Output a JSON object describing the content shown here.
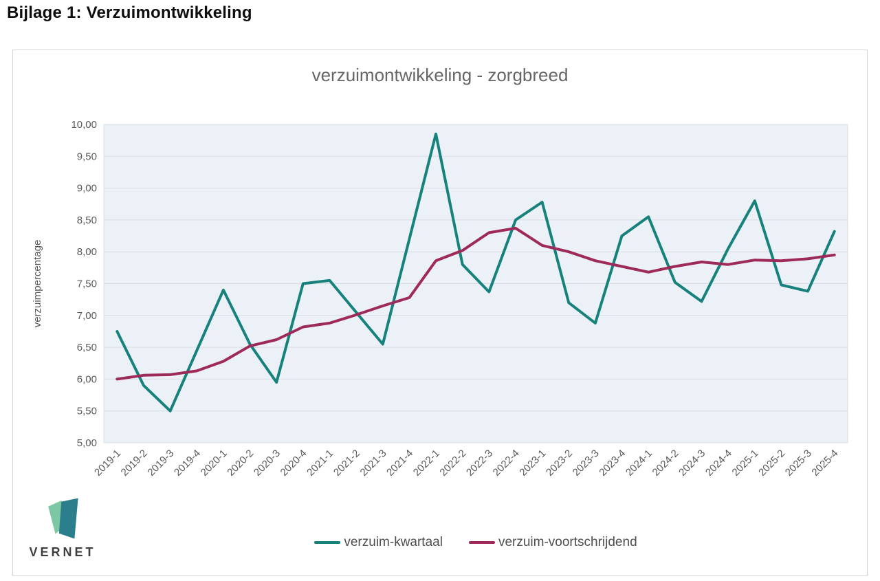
{
  "page": {
    "heading": "Bijlage 1: Verzuimontwikkeling"
  },
  "logo": {
    "text": "VERNET"
  },
  "chart_data": {
    "type": "line",
    "title": "verzuimontwikkeling - zorgbreed",
    "xlabel": "",
    "ylabel": "verzuimpercentage",
    "ylim": [
      5.0,
      10.0
    ],
    "ytick_step": 0.5,
    "ytick_labels": [
      "10,00",
      "9,50",
      "9,00",
      "8,50",
      "8,00",
      "7,50",
      "7,00",
      "6,50",
      "6,00",
      "5,50",
      "5,00"
    ],
    "grid": true,
    "legend_position": "bottom",
    "categories": [
      "2019-1",
      "2019-2",
      "2019-3",
      "2019-4",
      "2020-1",
      "2020-2",
      "2020-3",
      "2020-4",
      "2021-1",
      "2021-2",
      "2021-3",
      "2021-4",
      "2022-1",
      "2022-2",
      "2022-3",
      "2022-4",
      "2023-1",
      "2023-2",
      "2023-3",
      "2023-4",
      "2024-1",
      "2024-2",
      "2024-3",
      "2024-4",
      "2025-1",
      "2025-2",
      "2025-3",
      "2025-4"
    ],
    "series": [
      {
        "name": "verzuim-kwartaal",
        "color": "#17817b",
        "values": [
          6.75,
          5.9,
          5.5,
          6.45,
          7.4,
          6.55,
          5.95,
          7.5,
          7.55,
          7.05,
          6.55,
          8.2,
          9.85,
          7.8,
          7.37,
          8.5,
          8.78,
          7.2,
          6.88,
          8.25,
          8.55,
          7.52,
          7.22,
          8.05,
          8.8,
          7.48,
          7.38,
          8.32
        ]
      },
      {
        "name": "verzuim-voortschrijdend",
        "color": "#9e2a5a",
        "values": [
          6.0,
          6.06,
          6.07,
          6.13,
          6.28,
          6.52,
          6.62,
          6.82,
          6.88,
          7.01,
          7.15,
          7.28,
          7.86,
          8.02,
          8.3,
          8.37,
          8.1,
          8.0,
          7.86,
          7.77,
          7.68,
          7.77,
          7.84,
          7.8,
          7.87,
          7.86,
          7.89,
          7.95
        ]
      }
    ],
    "colors": {
      "plot_bg": "#ecf1f7",
      "gridline": "#d8dde3",
      "tick_text": "#595959",
      "title_text": "#666666"
    }
  }
}
